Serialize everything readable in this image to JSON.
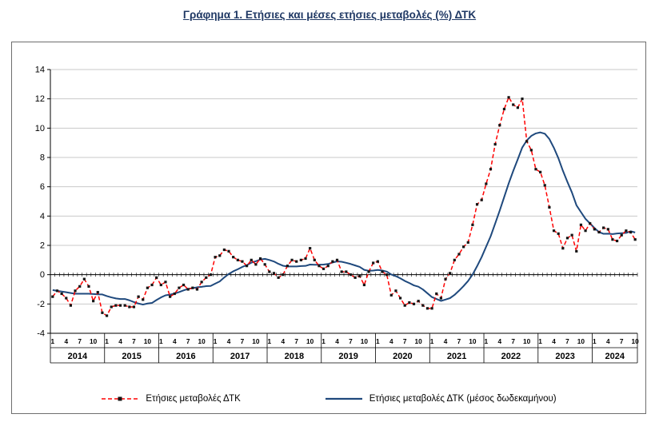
{
  "title": "Γράφημα 1. Ετήσιες και μέσες ετήσιες μεταβολές (%) ΔΤΚ",
  "legend": [
    {
      "label": "Ετήσιες μεταβολές ΔΤΚ",
      "color": "#FF0000",
      "marker_color": "#151515",
      "style": "dashed-square"
    },
    {
      "label": "Ετήσιες μεταβολές ΔΤΚ (μέσος δωδεκαμήνου)",
      "color": "#1F497D",
      "style": "solid"
    }
  ],
  "colors": {
    "grid": "#c9c9c9",
    "axis": "#000000",
    "box_border": "#6e6e6e"
  },
  "chart_data": {
    "type": "line",
    "title": "Γράφημα 1. Ετήσιες και μέσες ετήσιες μεταβολές (%) ΔΤΚ",
    "xlabel": "",
    "ylabel": "",
    "ylim": [
      -4,
      14
    ],
    "ytick_step": 2,
    "grid": true,
    "legend_position": "bottom",
    "years": [
      "2014",
      "2015",
      "2016",
      "2017",
      "2018",
      "2019",
      "2020",
      "2021",
      "2022",
      "2023",
      "2024"
    ],
    "months_per_year": [
      12,
      12,
      12,
      12,
      12,
      12,
      12,
      12,
      12,
      12,
      10
    ],
    "month_tick_labels": [
      "1",
      "4",
      "7",
      "10"
    ],
    "series": [
      {
        "name": "Ετήσιες μεταβολές ΔΤΚ",
        "color": "#FF0000",
        "line_style": "dashed",
        "marker": "black-square",
        "marker_color": "#151515",
        "values": [
          -1.5,
          -1.1,
          -1.3,
          -1.6,
          -2.1,
          -1.1,
          -0.8,
          -0.3,
          -0.8,
          -1.8,
          -1.2,
          -2.6,
          -2.8,
          -2.2,
          -2.1,
          -2.1,
          -2.1,
          -2.2,
          -2.2,
          -1.5,
          -1.7,
          -0.9,
          -0.7,
          -0.2,
          -0.7,
          -0.5,
          -1.5,
          -1.3,
          -0.9,
          -0.7,
          -1.0,
          -0.9,
          -1.0,
          -0.5,
          -0.2,
          0.0,
          1.2,
          1.3,
          1.7,
          1.6,
          1.2,
          1.0,
          0.9,
          0.6,
          1.0,
          0.7,
          1.1,
          0.7,
          0.2,
          0.1,
          -0.2,
          0.0,
          0.6,
          1.0,
          0.9,
          1.0,
          1.1,
          1.8,
          1.0,
          0.6,
          0.4,
          0.6,
          0.9,
          1.0,
          0.2,
          0.2,
          0.0,
          -0.2,
          -0.1,
          -0.7,
          0.2,
          0.8,
          0.9,
          0.2,
          0.0,
          -1.4,
          -1.1,
          -1.6,
          -2.1,
          -1.9,
          -2.0,
          -1.8,
          -2.1,
          -2.3,
          -2.3,
          -1.3,
          -1.6,
          -0.3,
          0.1,
          1.0,
          1.4,
          1.9,
          2.2,
          3.4,
          4.8,
          5.1,
          6.2,
          7.2,
          8.9,
          10.2,
          11.3,
          12.1,
          11.6,
          11.4,
          12.0,
          9.1,
          8.5,
          7.2,
          7.0,
          6.1,
          4.6,
          3.0,
          2.8,
          1.8,
          2.5,
          2.7,
          1.6,
          3.4,
          3.0,
          3.5,
          3.1,
          2.9,
          3.2,
          3.1,
          2.4,
          2.3,
          2.7,
          3.0,
          2.9,
          2.4
        ]
      },
      {
        "name": "Ετήσιες μεταβολές ΔΤΚ (μέσος δωδεκαμήνου)",
        "color": "#1F497D",
        "line_style": "solid",
        "marker": "none",
        "values": [
          -1.05,
          -1.1,
          -1.15,
          -1.2,
          -1.25,
          -1.3,
          -1.3,
          -1.3,
          -1.3,
          -1.32,
          -1.34,
          -1.35,
          -1.46,
          -1.55,
          -1.62,
          -1.66,
          -1.66,
          -1.75,
          -1.87,
          -1.97,
          -2.04,
          -1.97,
          -1.93,
          -1.73,
          -1.55,
          -1.41,
          -1.36,
          -1.29,
          -1.19,
          -1.07,
          -0.97,
          -0.92,
          -0.86,
          -0.83,
          -0.78,
          -0.77,
          -0.61,
          -0.46,
          -0.19,
          0.05,
          0.23,
          0.37,
          0.53,
          0.65,
          0.82,
          0.92,
          1.03,
          1.08,
          1.0,
          0.9,
          0.74,
          0.61,
          0.56,
          0.56,
          0.56,
          0.59,
          0.6,
          0.69,
          0.68,
          0.68,
          0.69,
          0.73,
          0.83,
          0.91,
          0.88,
          0.81,
          0.73,
          0.63,
          0.53,
          0.33,
          0.26,
          0.28,
          0.32,
          0.28,
          0.21,
          0.01,
          -0.1,
          -0.25,
          -0.43,
          -0.57,
          -0.73,
          -0.82,
          -1.01,
          -1.27,
          -1.53,
          -1.66,
          -1.79,
          -1.7,
          -1.6,
          -1.38,
          -1.09,
          -0.78,
          -0.43,
          0.01,
          0.58,
          1.2,
          1.91,
          2.62,
          3.49,
          4.37,
          5.3,
          6.23,
          7.08,
          7.87,
          8.68,
          9.16,
          9.47,
          9.64,
          9.71,
          9.62,
          9.26,
          8.66,
          7.95,
          7.09,
          6.33,
          5.61,
          4.74,
          4.27,
          3.81,
          3.5,
          3.18,
          2.91,
          2.79,
          2.8,
          2.77,
          2.81,
          2.83,
          2.85,
          2.96,
          2.88
        ]
      }
    ]
  }
}
